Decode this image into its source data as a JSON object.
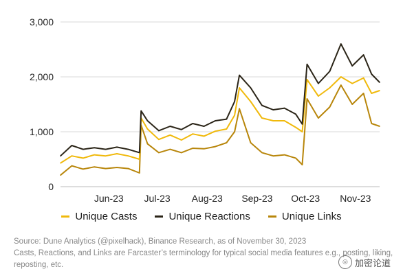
{
  "chart_data": {
    "type": "line",
    "xlabel": "",
    "ylabel": "",
    "ylim": [
      0,
      3000
    ],
    "yticks": [
      {
        "value": 0,
        "label": "0"
      },
      {
        "value": 1000,
        "label": "1,000"
      },
      {
        "value": 2000,
        "label": "2,000"
      },
      {
        "value": 3000,
        "label": "3,000"
      }
    ],
    "x_start": "2023-05-16",
    "x_end": "2023-11-30",
    "xticks": [
      {
        "date": "2023-06-15",
        "label": "Jun-23"
      },
      {
        "date": "2023-07-15",
        "label": "Jul-23"
      },
      {
        "date": "2023-08-15",
        "label": "Aug-23"
      },
      {
        "date": "2023-09-15",
        "label": "Sep-23"
      },
      {
        "date": "2023-10-15",
        "label": "Oct-23"
      },
      {
        "date": "2023-11-15",
        "label": "Nov-23"
      }
    ],
    "grid": "horizontal",
    "legend_position": "bottom",
    "series": [
      {
        "name": "Unique Casts",
        "color": "#F0B90B",
        "points": [
          [
            "2023-05-16",
            430
          ],
          [
            "2023-05-23",
            560
          ],
          [
            "2023-05-30",
            520
          ],
          [
            "2023-06-06",
            580
          ],
          [
            "2023-06-13",
            560
          ],
          [
            "2023-06-20",
            600
          ],
          [
            "2023-06-27",
            560
          ],
          [
            "2023-07-04",
            500
          ],
          [
            "2023-07-05",
            1250
          ],
          [
            "2023-07-09",
            1050
          ],
          [
            "2023-07-16",
            860
          ],
          [
            "2023-07-23",
            940
          ],
          [
            "2023-07-30",
            850
          ],
          [
            "2023-08-06",
            960
          ],
          [
            "2023-08-13",
            920
          ],
          [
            "2023-08-20",
            1010
          ],
          [
            "2023-08-27",
            1050
          ],
          [
            "2023-09-01",
            1300
          ],
          [
            "2023-09-04",
            1800
          ],
          [
            "2023-09-11",
            1550
          ],
          [
            "2023-09-18",
            1250
          ],
          [
            "2023-09-25",
            1200
          ],
          [
            "2023-10-02",
            1200
          ],
          [
            "2023-10-09",
            1080
          ],
          [
            "2023-10-13",
            1000
          ],
          [
            "2023-10-16",
            1950
          ],
          [
            "2023-10-23",
            1650
          ],
          [
            "2023-10-30",
            1800
          ],
          [
            "2023-11-06",
            2000
          ],
          [
            "2023-11-13",
            1880
          ],
          [
            "2023-11-20",
            1980
          ],
          [
            "2023-11-25",
            1700
          ],
          [
            "2023-11-30",
            1750
          ]
        ]
      },
      {
        "name": "Unique Reactions",
        "color": "#2A2417",
        "points": [
          [
            "2023-05-16",
            560
          ],
          [
            "2023-05-23",
            750
          ],
          [
            "2023-05-30",
            680
          ],
          [
            "2023-06-06",
            710
          ],
          [
            "2023-06-13",
            680
          ],
          [
            "2023-06-20",
            720
          ],
          [
            "2023-06-27",
            680
          ],
          [
            "2023-07-04",
            620
          ],
          [
            "2023-07-05",
            1380
          ],
          [
            "2023-07-09",
            1200
          ],
          [
            "2023-07-16",
            1020
          ],
          [
            "2023-07-23",
            1100
          ],
          [
            "2023-07-30",
            1040
          ],
          [
            "2023-08-06",
            1150
          ],
          [
            "2023-08-13",
            1100
          ],
          [
            "2023-08-20",
            1200
          ],
          [
            "2023-08-27",
            1230
          ],
          [
            "2023-09-01",
            1550
          ],
          [
            "2023-09-04",
            2030
          ],
          [
            "2023-09-11",
            1800
          ],
          [
            "2023-09-18",
            1480
          ],
          [
            "2023-09-25",
            1400
          ],
          [
            "2023-10-02",
            1430
          ],
          [
            "2023-10-09",
            1320
          ],
          [
            "2023-10-13",
            1140
          ],
          [
            "2023-10-16",
            2230
          ],
          [
            "2023-10-23",
            1880
          ],
          [
            "2023-10-30",
            2100
          ],
          [
            "2023-11-06",
            2600
          ],
          [
            "2023-11-13",
            2200
          ],
          [
            "2023-11-20",
            2400
          ],
          [
            "2023-11-25",
            2050
          ],
          [
            "2023-11-30",
            1900
          ]
        ]
      },
      {
        "name": "Unique Links",
        "color": "#B8860B",
        "points": [
          [
            "2023-05-16",
            210
          ],
          [
            "2023-05-23",
            380
          ],
          [
            "2023-05-30",
            320
          ],
          [
            "2023-06-06",
            360
          ],
          [
            "2023-06-13",
            330
          ],
          [
            "2023-06-20",
            350
          ],
          [
            "2023-06-27",
            330
          ],
          [
            "2023-07-04",
            250
          ],
          [
            "2023-07-05",
            1120
          ],
          [
            "2023-07-09",
            780
          ],
          [
            "2023-07-16",
            620
          ],
          [
            "2023-07-23",
            680
          ],
          [
            "2023-07-30",
            620
          ],
          [
            "2023-08-06",
            700
          ],
          [
            "2023-08-13",
            690
          ],
          [
            "2023-08-20",
            730
          ],
          [
            "2023-08-27",
            800
          ],
          [
            "2023-09-01",
            1000
          ],
          [
            "2023-09-04",
            1420
          ],
          [
            "2023-09-11",
            800
          ],
          [
            "2023-09-18",
            620
          ],
          [
            "2023-09-25",
            560
          ],
          [
            "2023-10-02",
            580
          ],
          [
            "2023-10-09",
            520
          ],
          [
            "2023-10-13",
            400
          ],
          [
            "2023-10-16",
            1600
          ],
          [
            "2023-10-23",
            1250
          ],
          [
            "2023-10-30",
            1450
          ],
          [
            "2023-11-06",
            1850
          ],
          [
            "2023-11-13",
            1500
          ],
          [
            "2023-11-20",
            1700
          ],
          [
            "2023-11-25",
            1150
          ],
          [
            "2023-11-30",
            1100
          ]
        ]
      }
    ]
  },
  "legend": {
    "casts": "Unique Casts",
    "reactions": "Unique Reactions",
    "links": "Unique Links"
  },
  "footnote": {
    "source": "Source: Dune Analytics (@pixelhack), Binance Research, as of November 30, 2023",
    "note_line1": "Casts, Reactions, and Links are Farcaster’s terminology for typical social media features e.g., posting, liking,",
    "note_line2": "reposting, etc."
  },
  "watermark": {
    "text": "加密论道"
  },
  "colors": {
    "casts": "#F0B90B",
    "reactions": "#2A2417",
    "links": "#B8860B"
  }
}
